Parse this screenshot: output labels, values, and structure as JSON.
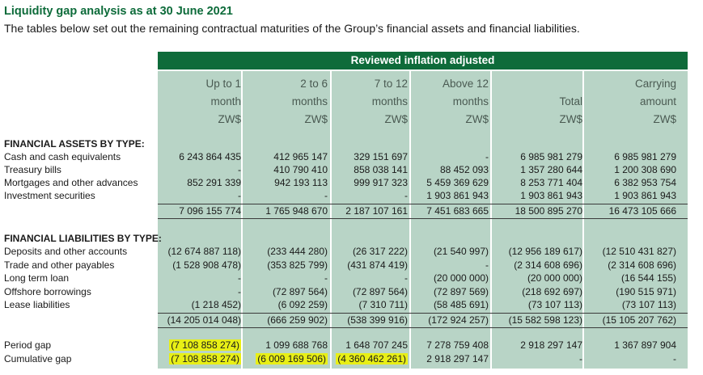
{
  "title": "Liquidity gap analysis as at 30 June 2021",
  "subtitle": "The tables below set out the remaining contractual maturities of the Group’s financial assets and financial liabilities.",
  "band": "Reviewed inflation adjusted",
  "headers": [
    [
      "Up to 1",
      "month",
      "ZW$"
    ],
    [
      "2 to 6",
      "months",
      "ZW$"
    ],
    [
      "7 to 12",
      "months",
      "ZW$"
    ],
    [
      "Above 12",
      "months",
      "ZW$"
    ],
    [
      "",
      "Total",
      "ZW$"
    ],
    [
      "Carrying",
      "amount",
      "ZW$"
    ]
  ],
  "assets": {
    "heading": "FINANCIAL ASSETS BY TYPE:",
    "rows": [
      {
        "label": "Cash and cash equivalents",
        "v": [
          "6 243 864 435",
          "412 965 147",
          "329 151 697",
          "-",
          "6 985 981 279",
          "6 985 981 279"
        ]
      },
      {
        "label": "Treasury bills",
        "v": [
          "-",
          "410 790 410",
          "858 038 141",
          "88 452 093",
          "1 357 280 644",
          "1 200 308 690"
        ]
      },
      {
        "label": "Mortgages and other advances",
        "v": [
          "852 291 339",
          "942 193 113",
          "999 917 323",
          "5 459 369 629",
          "8 253 771 404",
          "6 382 953 754"
        ]
      },
      {
        "label": "Investment securities",
        "v": [
          "-",
          "-",
          "-",
          "1 903 861 943",
          "1 903 861 943",
          "1 903 861 943"
        ]
      }
    ],
    "total": [
      "7 096 155 774",
      "1 765 948 670",
      "2 187 107 161",
      "7 451 683 665",
      "18 500 895 270",
      "16 473 105 666"
    ]
  },
  "liabilities": {
    "heading": "FINANCIAL LIABILITIES BY TYPE:",
    "rows": [
      {
        "label": "Deposits and other accounts",
        "v": [
          "(12 674 887 118)",
          "(233 444 280)",
          "(26 317 222)",
          "(21 540 997)",
          "(12 956 189 617)",
          "(12 510 431 827)"
        ]
      },
      {
        "label": "Trade and other payables",
        "v": [
          "(1 528 908 478)",
          "(353 825 799)",
          "(431 874 419)",
          "-",
          "(2 314 608 696)",
          "(2 314 608 696)"
        ]
      },
      {
        "label": "Long term loan",
        "v": [
          "-",
          "-",
          "-",
          "(20 000 000)",
          "(20 000 000)",
          "(16 544 155)"
        ]
      },
      {
        "label": "Offshore borrowings",
        "v": [
          "-",
          "(72 897 564)",
          "(72 897 564)",
          "(72 897 569)",
          "(218 692 697)",
          "(190 515 971)"
        ]
      },
      {
        "label": "Lease liabilities",
        "v": [
          "(1 218 452)",
          "(6 092 259)",
          "(7 310 711)",
          "(58 485 691)",
          "(73 107 113)",
          "(73 107 113)"
        ]
      }
    ],
    "total": [
      "(14 205 014 048)",
      "(666 259 902)",
      "(538 399 916)",
      "(172 924 257)",
      "(15 582 598 123)",
      "(15 105 207 762)"
    ]
  },
  "gaps": [
    {
      "label": "Period gap",
      "v": [
        "(7 108 858 274)",
        "1 099 688 768",
        "1 648 707 245",
        "7 278 759 408",
        "2 918 297 147",
        "1 367 897 904"
      ],
      "hl": [
        true,
        false,
        false,
        false,
        false,
        false
      ]
    },
    {
      "label": "Cumulative gap",
      "v": [
        "(7 108 858 274)",
        "(6 009 169 506)",
        "(4 360 462 261)",
        "2 918 297 147",
        "-",
        "-"
      ],
      "hl": [
        true,
        true,
        true,
        false,
        false,
        false
      ]
    }
  ]
}
